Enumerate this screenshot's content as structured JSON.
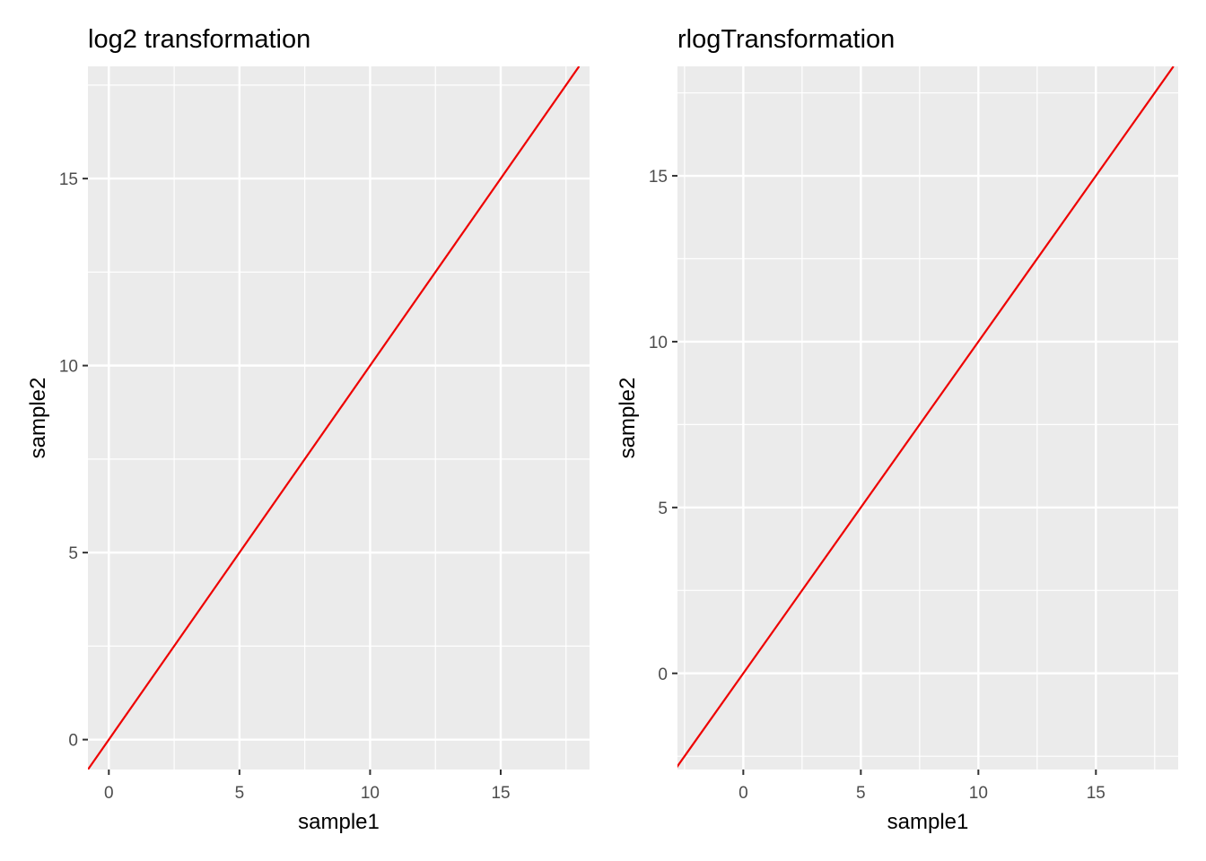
{
  "chart_data": [
    {
      "type": "line",
      "title": "log2 transformation",
      "xlabel": "sample1",
      "ylabel": "sample2",
      "xlim": [
        -0.8,
        18.4
      ],
      "ylim": [
        -0.8,
        18.0
      ],
      "xticks": [
        0,
        5,
        10,
        15
      ],
      "yticks": [
        0,
        5,
        10,
        15
      ],
      "x_minor_breaks": [
        2.5,
        7.5,
        12.5,
        17.5
      ],
      "y_minor_breaks": [
        2.5,
        7.5,
        12.5,
        17.5
      ],
      "grid": true,
      "series": [
        {
          "color": "#ee0000",
          "x": [
            -0.8,
            18.0
          ],
          "y": [
            -0.8,
            18.0
          ]
        }
      ]
    },
    {
      "type": "line",
      "title": "rlogTransformation",
      "xlabel": "sample1",
      "ylabel": "sample2",
      "xlim": [
        -2.8,
        18.5
      ],
      "ylim": [
        -2.9,
        18.3
      ],
      "xticks": [
        0,
        5,
        10,
        15
      ],
      "yticks": [
        0,
        5,
        10,
        15
      ],
      "x_minor_breaks": [
        -2.5,
        2.5,
        7.5,
        12.5,
        17.5
      ],
      "y_minor_breaks": [
        -2.5,
        2.5,
        7.5,
        12.5,
        17.5
      ],
      "grid": true,
      "series": [
        {
          "color": "#ee0000",
          "x": [
            -2.9,
            18.3
          ],
          "y": [
            -2.9,
            18.3
          ]
        }
      ]
    }
  ],
  "colors": {
    "panel_background": "#ebebeb",
    "grid_line": "#ffffff",
    "tick_mark": "#333333",
    "tick_label": "#4d4d4d"
  }
}
